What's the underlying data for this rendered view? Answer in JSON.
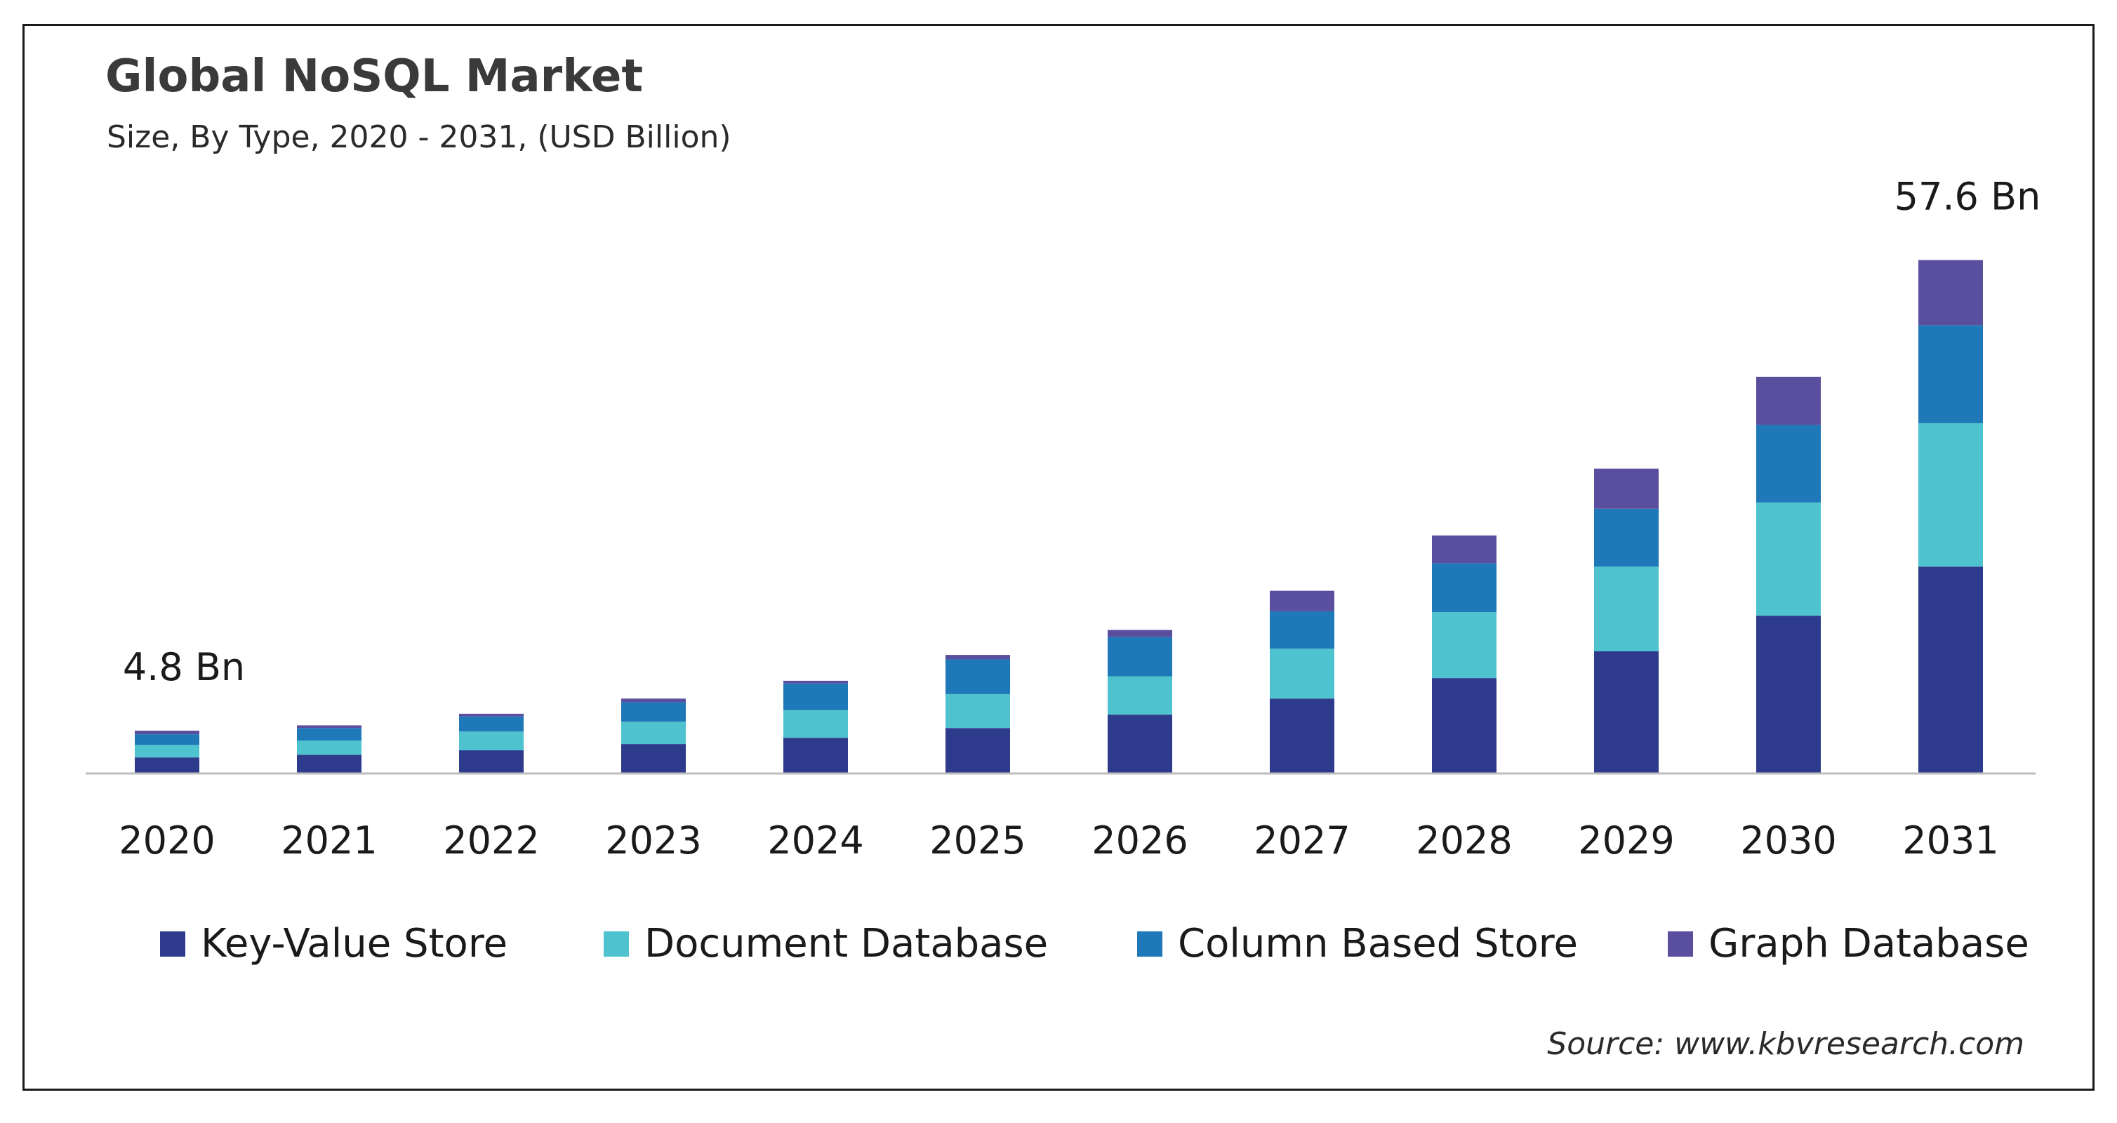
{
  "chart_data": {
    "type": "bar",
    "stacked": true,
    "title": "Global NoSQL Market",
    "subtitle": "Size, By Type, 2020 - 2031, (USD Billion)",
    "categories": [
      "2020",
      "2021",
      "2022",
      "2023",
      "2024",
      "2025",
      "2026",
      "2027",
      "2028",
      "2029",
      "2030",
      "2031"
    ],
    "series": [
      {
        "name": "Key-Value Store",
        "color": "#2e3a8c",
        "values": [
          1.8,
          2.1,
          2.6,
          3.3,
          4.0,
          5.1,
          6.6,
          8.4,
          10.7,
          13.7,
          17.7,
          23.2
        ]
      },
      {
        "name": "Document Database",
        "color": "#4ec3cf",
        "values": [
          1.4,
          1.6,
          2.1,
          2.5,
          3.1,
          3.8,
          4.3,
          5.6,
          7.4,
          9.5,
          12.7,
          16.1
        ]
      },
      {
        "name": "Column Based Store",
        "color": "#1f78b7",
        "values": [
          1.2,
          1.4,
          1.7,
          2.2,
          3.0,
          3.9,
          4.4,
          4.2,
          5.5,
          6.5,
          8.7,
          11.0
        ]
      },
      {
        "name": "Graph Database",
        "color": "#5a4f9e",
        "values": [
          0.4,
          0.3,
          0.3,
          0.4,
          0.3,
          0.5,
          0.8,
          2.3,
          3.1,
          4.5,
          5.4,
          7.3
        ]
      }
    ],
    "data_labels": [
      {
        "category": "2020",
        "text": "4.8 Bn"
      },
      {
        "category": "2031",
        "text": "57.6 Bn"
      }
    ],
    "ylim": [
      0,
      60
    ],
    "grid": false,
    "legend_position": "bottom",
    "source": "Source: www.kbvresearch.com"
  }
}
